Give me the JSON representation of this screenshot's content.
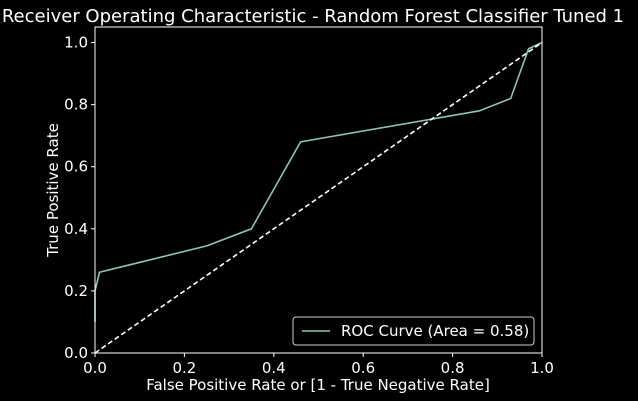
{
  "chart_data": {
    "type": "line",
    "title": "Receiver Operating Characteristic - Random Forest Classifier Tuned 1",
    "xlabel": "False Positive Rate or [1 - True Negative Rate]",
    "ylabel": "True Positive Rate",
    "xlim": [
      0,
      1
    ],
    "ylim": [
      0,
      1.05
    ],
    "xticks": [
      0.0,
      0.2,
      0.4,
      0.6,
      0.8,
      1.0
    ],
    "yticks": [
      0.0,
      0.2,
      0.4,
      0.6,
      0.8,
      1.0
    ],
    "tick_labels": {
      "x": [
        "0.0",
        "0.2",
        "0.4",
        "0.6",
        "0.8",
        "1.0"
      ],
      "y": [
        "0.0",
        "0.2",
        "0.4",
        "0.6",
        "0.8",
        "1.0"
      ]
    },
    "grid": false,
    "legend_position": "lower-right",
    "series": [
      {
        "name": "ROC Curve (Area = 0.58)",
        "color": "#8ec5b0",
        "style": "solid",
        "x": [
          0.0,
          0.0,
          0.01,
          0.25,
          0.35,
          0.46,
          0.86,
          0.93,
          0.97,
          1.0
        ],
        "y": [
          0.1,
          0.2,
          0.26,
          0.345,
          0.4,
          0.68,
          0.78,
          0.82,
          0.98,
          1.0
        ]
      },
      {
        "color": "#ffffff",
        "style": "dashed",
        "x": [
          0.0,
          1.0
        ],
        "y": [
          0.0,
          1.0
        ]
      }
    ]
  }
}
